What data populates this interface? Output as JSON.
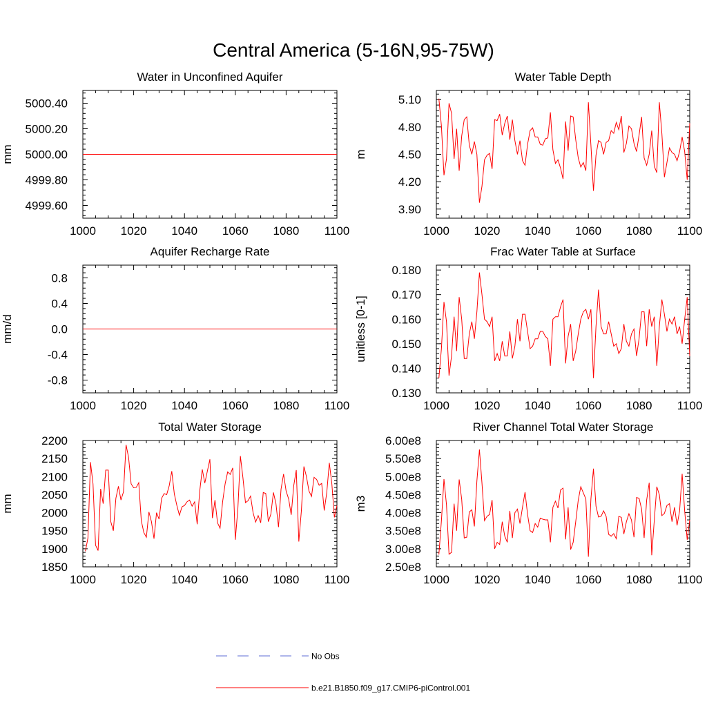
{
  "title": "Central America (5-16N,95-75W)",
  "colors": {
    "model": "#ff0000",
    "obs": "#5b6bd6",
    "axis": "#000000"
  },
  "chart_data": [
    {
      "type": "line",
      "title": "Water in Unconfined Aquifer",
      "ylabel": "mm",
      "xlim": [
        1000,
        1100
      ],
      "ylim": [
        4999.5,
        5000.5
      ],
      "xticks": [
        1000,
        1020,
        1040,
        1060,
        1080,
        1100
      ],
      "yticks": [
        4999.6,
        4999.8,
        5000.0,
        5000.2,
        5000.4
      ],
      "ytick_labels": [
        "4999.60",
        "4999.80",
        "5000.00",
        "5000.20",
        "5000.40"
      ],
      "x_start": 1001,
      "series": [
        {
          "name": "b.e21.B1850.f09_g17.CMIP6-piControl.001",
          "constant": 5000.0
        }
      ]
    },
    {
      "type": "line",
      "title": "Water Table Depth",
      "ylabel": "m",
      "xlim": [
        1000,
        1100
      ],
      "ylim": [
        3.8,
        5.2
      ],
      "xticks": [
        1000,
        1020,
        1040,
        1060,
        1080,
        1100
      ],
      "yticks": [
        3.9,
        4.2,
        4.5,
        4.8,
        5.1
      ],
      "ytick_labels": [
        "3.90",
        "4.20",
        "4.50",
        "4.80",
        "5.10"
      ],
      "x_start": 1001,
      "series": [
        {
          "name": "b.e21.B1850.f09_g17.CMIP6-piControl.001",
          "values": [
            5.11,
            4.81,
            4.27,
            4.45,
            5.06,
            4.95,
            4.45,
            4.78,
            4.32,
            4.7,
            4.88,
            4.91,
            4.6,
            4.5,
            4.64,
            4.5,
            3.97,
            4.15,
            4.44,
            4.49,
            4.51,
            4.34,
            4.88,
            4.87,
            4.94,
            4.71,
            4.84,
            4.92,
            4.66,
            4.88,
            4.65,
            4.5,
            4.65,
            4.43,
            4.38,
            4.61,
            4.76,
            4.79,
            4.69,
            4.69,
            4.61,
            4.6,
            4.67,
            4.68,
            4.96,
            4.55,
            4.4,
            4.44,
            4.35,
            4.23,
            4.86,
            4.54,
            4.92,
            4.91,
            4.66,
            4.46,
            4.36,
            4.41,
            4.32,
            5.07,
            4.6,
            4.1,
            4.49,
            4.65,
            4.63,
            4.5,
            4.63,
            4.65,
            4.76,
            4.73,
            4.85,
            4.77,
            4.92,
            4.52,
            4.62,
            4.81,
            4.78,
            4.62,
            4.53,
            4.71,
            4.91,
            4.46,
            4.38,
            4.5,
            4.76,
            4.37,
            4.3,
            5.07,
            4.73,
            4.25,
            4.41,
            4.57,
            4.52,
            4.5,
            4.43,
            4.53,
            4.69,
            4.53,
            4.22,
            4.84
          ]
        }
      ]
    },
    {
      "type": "line",
      "title": "Aquifer Recharge Rate",
      "ylabel": "mm/d",
      "xlim": [
        1000,
        1100
      ],
      "ylim": [
        -1.0,
        1.0
      ],
      "xticks": [
        1000,
        1020,
        1040,
        1060,
        1080,
        1100
      ],
      "yticks": [
        -0.8,
        -0.4,
        0.0,
        0.4,
        0.8
      ],
      "ytick_labels": [
        "-0.8",
        "-0.4",
        "0.0",
        "0.4",
        "0.8"
      ],
      "x_start": 1001,
      "series": [
        {
          "name": "b.e21.B1850.f09_g17.CMIP6-piControl.001",
          "constant": 0.0
        }
      ]
    },
    {
      "type": "line",
      "title": "Frac Water Table at Surface",
      "ylabel": "unitless [0-1]",
      "xlim": [
        1000,
        1100
      ],
      "ylim": [
        0.13,
        0.182
      ],
      "xticks": [
        1000,
        1020,
        1040,
        1060,
        1080,
        1100
      ],
      "yticks": [
        0.13,
        0.14,
        0.15,
        0.16,
        0.17,
        0.18
      ],
      "ytick_labels": [
        "0.130",
        "0.140",
        "0.150",
        "0.160",
        "0.170",
        "0.180"
      ],
      "x_start": 1001,
      "series": [
        {
          "name": "b.e21.B1850.f09_g17.CMIP6-piControl.001",
          "values": [
            0.136,
            0.148,
            0.167,
            0.159,
            0.137,
            0.145,
            0.161,
            0.147,
            0.169,
            0.16,
            0.144,
            0.144,
            0.154,
            0.159,
            0.152,
            0.163,
            0.179,
            0.17,
            0.16,
            0.159,
            0.157,
            0.161,
            0.143,
            0.146,
            0.143,
            0.151,
            0.145,
            0.145,
            0.155,
            0.144,
            0.149,
            0.16,
            0.151,
            0.162,
            0.162,
            0.155,
            0.148,
            0.149,
            0.152,
            0.152,
            0.155,
            0.155,
            0.153,
            0.152,
            0.141,
            0.16,
            0.161,
            0.161,
            0.165,
            0.168,
            0.142,
            0.153,
            0.158,
            0.143,
            0.147,
            0.154,
            0.16,
            0.163,
            0.164,
            0.16,
            0.164,
            0.136,
            0.157,
            0.172,
            0.157,
            0.154,
            0.154,
            0.159,
            0.154,
            0.149,
            0.15,
            0.146,
            0.148,
            0.158,
            0.151,
            0.149,
            0.154,
            0.156,
            0.145,
            0.152,
            0.163,
            0.163,
            0.149,
            0.164,
            0.157,
            0.161,
            0.141,
            0.157,
            0.168,
            0.162,
            0.155,
            0.16,
            0.158,
            0.161,
            0.154,
            0.157,
            0.15,
            0.16,
            0.169,
            0.145
          ]
        }
      ]
    },
    {
      "type": "line",
      "title": "Total Water Storage",
      "ylabel": "mm",
      "xlim": [
        1000,
        1100
      ],
      "ylim": [
        1850,
        2200
      ],
      "xticks": [
        1000,
        1020,
        1040,
        1060,
        1080,
        1100
      ],
      "yticks": [
        1850,
        1900,
        1950,
        2000,
        2050,
        2100,
        2150,
        2200
      ],
      "ytick_labels": [
        "1850",
        "1900",
        "1950",
        "2000",
        "2050",
        "2100",
        "2150",
        "2200"
      ],
      "x_start": 1001,
      "series": [
        {
          "name": "b.e21.B1850.f09_g17.CMIP6-piControl.001",
          "values": [
            1893,
            1930,
            2140,
            2080,
            1910,
            1895,
            2066,
            2025,
            2118,
            2118,
            1975,
            1950,
            2040,
            2073,
            2035,
            2058,
            2188,
            2153,
            2080,
            2069,
            2070,
            2083,
            1978,
            1945,
            1932,
            2002,
            1975,
            1928,
            2000,
            1982,
            2040,
            2053,
            2050,
            2075,
            2115,
            2052,
            2020,
            1993,
            2016,
            2020,
            2030,
            2035,
            2018,
            2030,
            1968,
            2060,
            2120,
            2082,
            2115,
            2148,
            1985,
            2035,
            1972,
            1957,
            2030,
            2080,
            2113,
            2106,
            2124,
            1925,
            2010,
            2157,
            2097,
            2028,
            2033,
            2046,
            2000,
            1974,
            1992,
            1972,
            2056,
            2053,
            1975,
            1996,
            2056,
            2025,
            1960,
            2065,
            2107,
            2060,
            2038,
            1994,
            2075,
            2118,
            1920,
            2005,
            2128,
            2100,
            2060,
            2045,
            2098,
            2092,
            2076,
            2081,
            2006,
            2056,
            2138,
            2080,
            1987,
            2020
          ]
        }
      ]
    },
    {
      "type": "line",
      "title": "River Channel Total Water Storage",
      "ylabel": "m3",
      "xlim": [
        1000,
        1100
      ],
      "ylim": [
        250000000,
        600000000
      ],
      "xticks": [
        1000,
        1020,
        1040,
        1060,
        1080,
        1100
      ],
      "yticks": [
        250000000,
        300000000,
        350000000,
        400000000,
        450000000,
        500000000,
        550000000,
        600000000
      ],
      "ytick_labels": [
        "2.50e8",
        "3.00e8",
        "3.50e8",
        "4.00e8",
        "4.50e8",
        "5.00e8",
        "5.50e8",
        "6.00e8"
      ],
      "x_start": 1001,
      "series": [
        {
          "name": "b.e21.B1850.f09_g17.CMIP6-piControl.001",
          "values": [
            284000000,
            378000000,
            493000000,
            422000000,
            285000000,
            290000000,
            425000000,
            350000000,
            492000000,
            437000000,
            330000000,
            332000000,
            402000000,
            408000000,
            362000000,
            488000000,
            575000000,
            482000000,
            378000000,
            390000000,
            395000000,
            435000000,
            300000000,
            318000000,
            312000000,
            375000000,
            335000000,
            318000000,
            405000000,
            330000000,
            400000000,
            410000000,
            370000000,
            415000000,
            457000000,
            395000000,
            350000000,
            345000000,
            370000000,
            360000000,
            385000000,
            382000000,
            380000000,
            380000000,
            318000000,
            415000000,
            432000000,
            413000000,
            463000000,
            468000000,
            326000000,
            415000000,
            298000000,
            318000000,
            375000000,
            435000000,
            472000000,
            455000000,
            438000000,
            278000000,
            438000000,
            522000000,
            418000000,
            388000000,
            390000000,
            405000000,
            390000000,
            340000000,
            335000000,
            342000000,
            328000000,
            390000000,
            387000000,
            341000000,
            375000000,
            397000000,
            380000000,
            332000000,
            442000000,
            440000000,
            410000000,
            330000000,
            435000000,
            483000000,
            282000000,
            378000000,
            472000000,
            450000000,
            392000000,
            398000000,
            420000000,
            425000000,
            375000000,
            415000000,
            365000000,
            405000000,
            508000000,
            405000000,
            325000000,
            380000000
          ]
        }
      ]
    }
  ],
  "legend": {
    "items": [
      {
        "label": "No Obs",
        "style": "dashed"
      },
      {
        "label": "b.e21.B1850.f09_g17.CMIP6-piControl.001",
        "style": "solid"
      }
    ]
  }
}
